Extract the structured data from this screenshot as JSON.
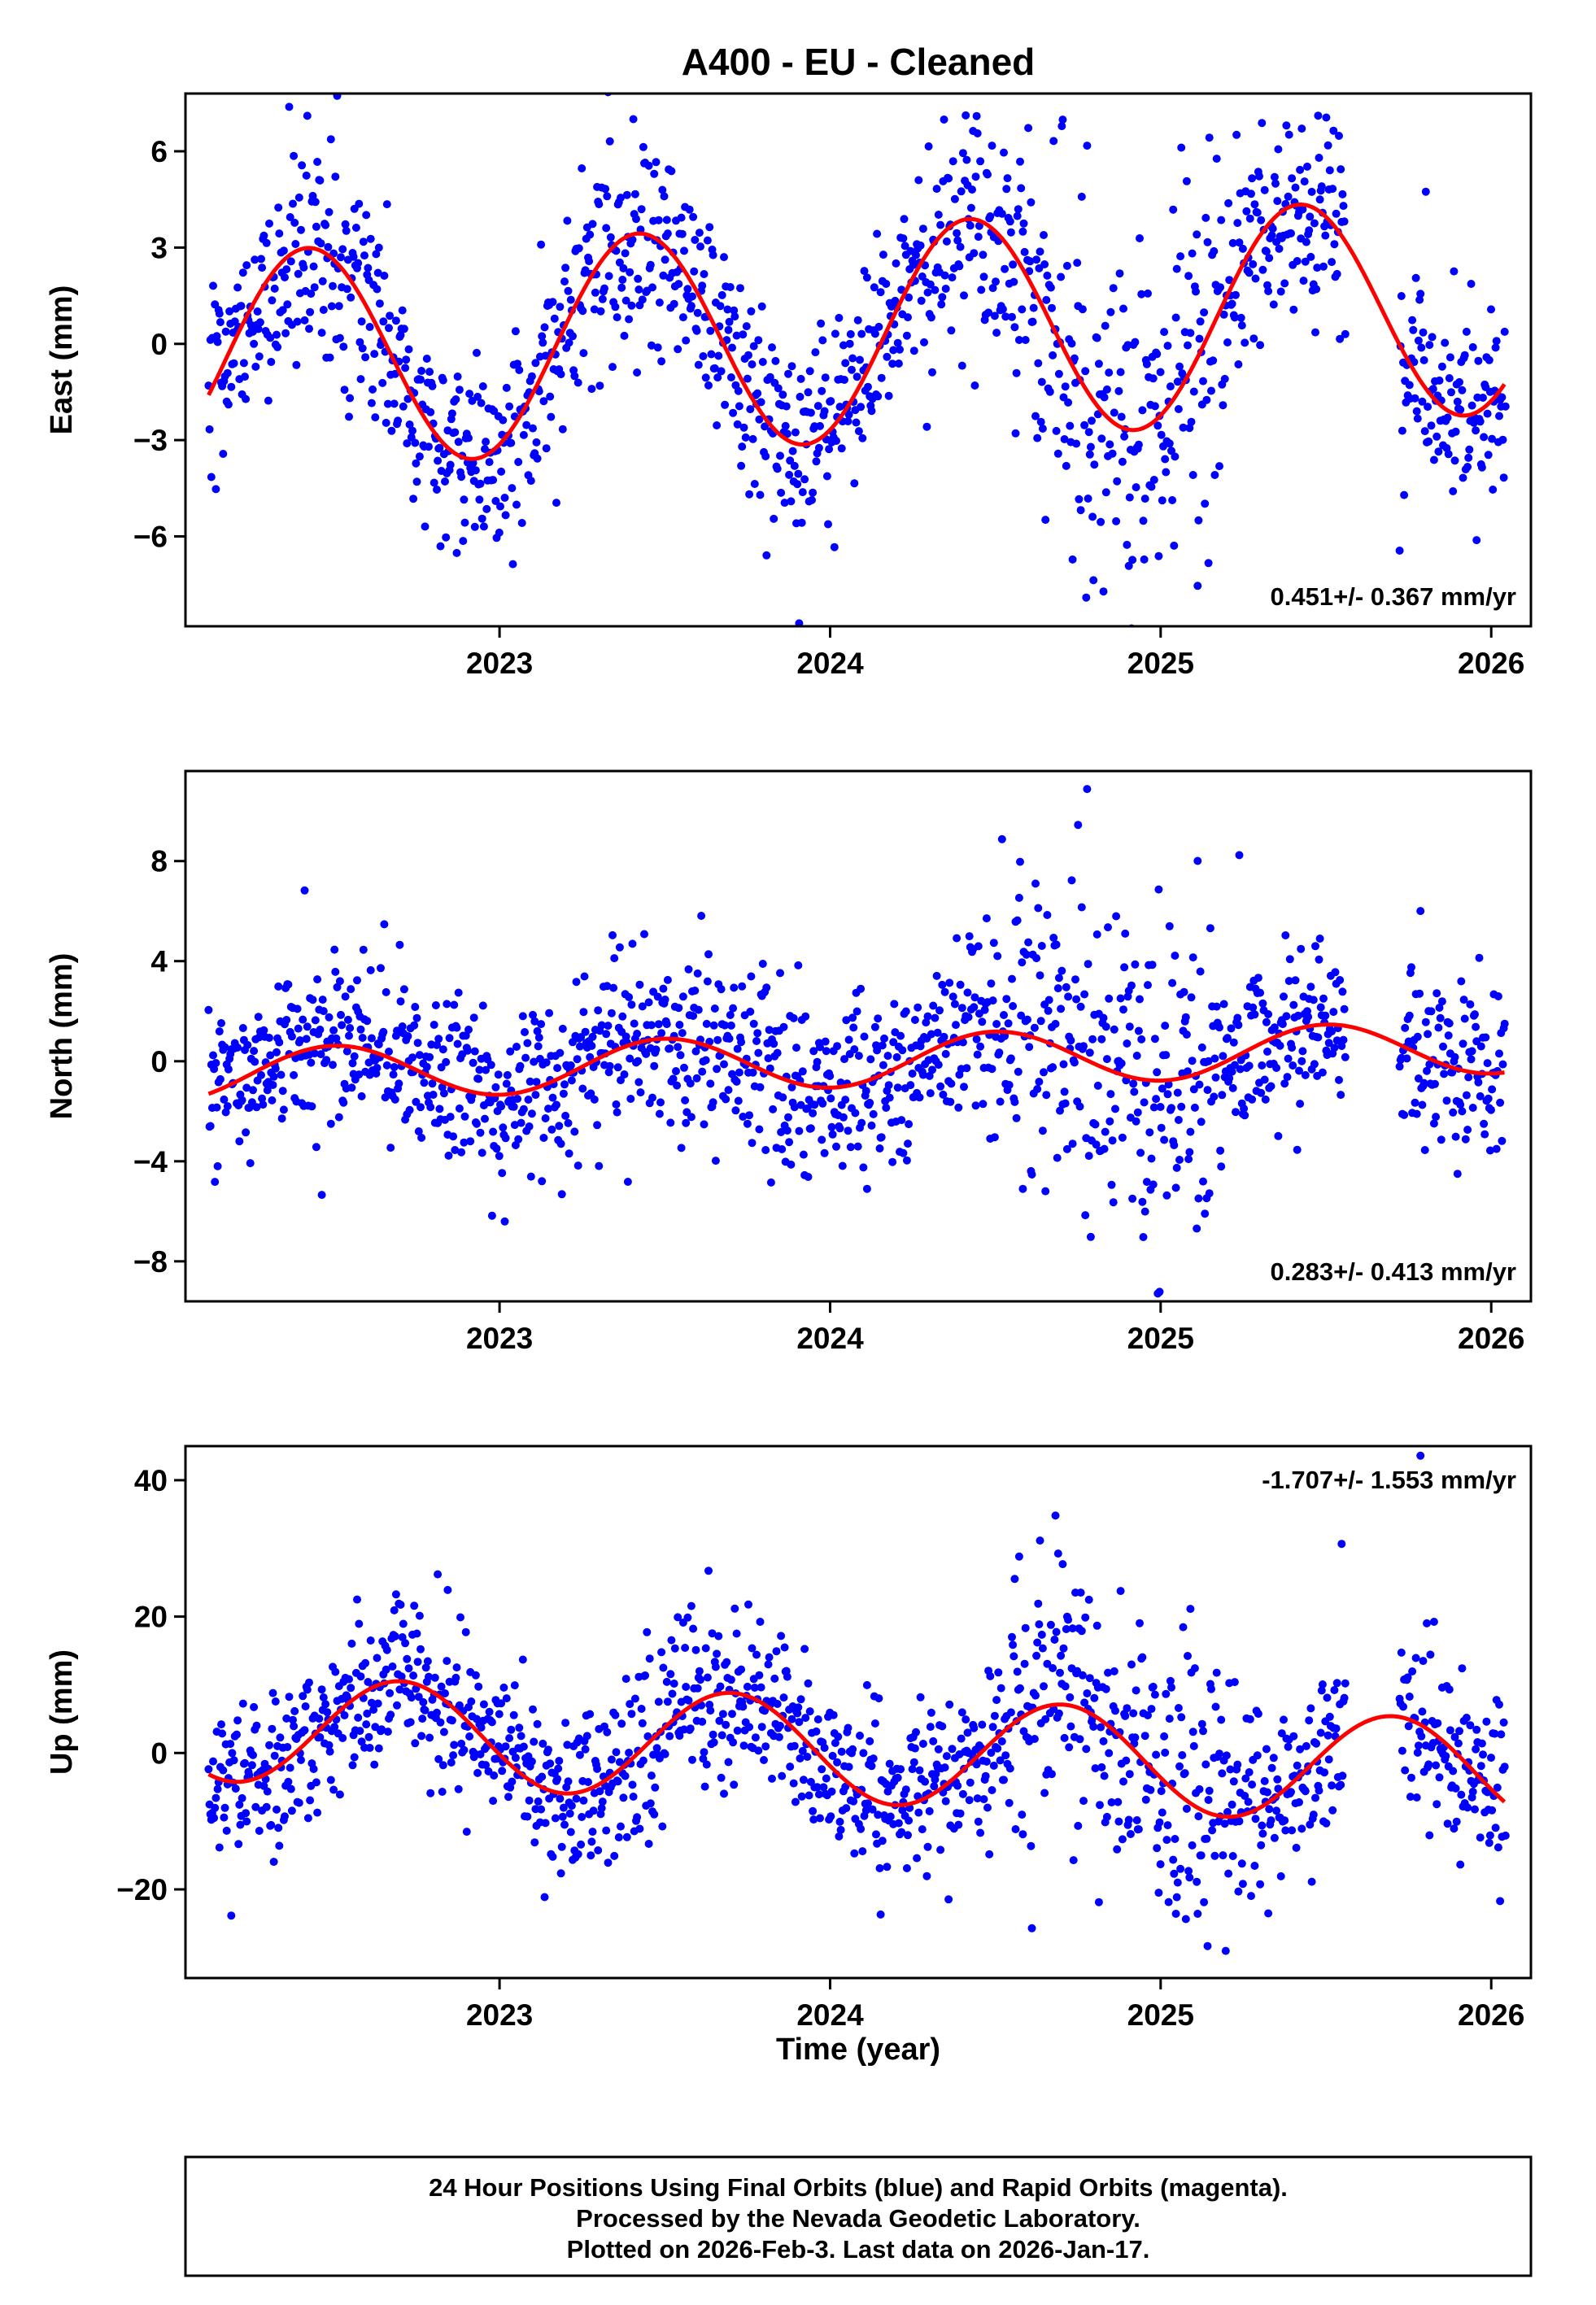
{
  "chart_data": {
    "type": "scatter",
    "title": "A400  - EU - Cleaned",
    "x_axis": {
      "label": "Time (year)",
      "min": 2022.05,
      "max": 2026.12,
      "ticks": [
        2023,
        2024,
        2025,
        2026
      ]
    },
    "colors": {
      "points": "#0000ff",
      "model": "#ff0000",
      "frame": "#000000",
      "background": "#ffffff"
    },
    "scatter_common": {
      "start": 2022.12,
      "end": 2026.045,
      "samples_per_year": 365,
      "gaps": [
        [
          2025.56,
          2025.72
        ]
      ]
    },
    "panels": [
      {
        "id": "east",
        "ylabel": "East (mm)",
        "ylim": [
          -8.8,
          7.8
        ],
        "yticks": [
          -6,
          -3,
          0,
          3,
          6
        ],
        "rate_label": "0.451+/- 0.367 mm/yr",
        "rate_label_position": "bottom-right",
        "model": {
          "offset_mm": 0.3,
          "ref_epoch": 2024.0,
          "trend_mm_yr": 0.451,
          "annual_amplitude_mm": 3.4,
          "annual_peak_epoch": 2024.42
        },
        "noise": {
          "sigma_mm": 1.6,
          "seed": 101,
          "outlier_rate": 0.03,
          "outlier_scale": 2.3,
          "noisy_windows": [
            {
              "from": 2024.55,
              "to": 2025.2,
              "scale": 1.8
            }
          ]
        }
      },
      {
        "id": "north",
        "ylabel": "North (mm)",
        "ylim": [
          -9.6,
          11.6
        ],
        "yticks": [
          -8,
          -4,
          0,
          4,
          8
        ],
        "rate_label": "0.283+/- 0.413 mm/yr",
        "rate_label_position": "bottom-right",
        "model": {
          "offset_mm": -0.15,
          "ref_epoch": 2023.5,
          "trend_mm_yr": 0.283,
          "annual_amplitude_mm": 1.05,
          "annual_peak_epoch": 2024.5
        },
        "noise": {
          "sigma_mm": 1.7,
          "seed": 202,
          "outlier_rate": 0.03,
          "outlier_scale": 2.3,
          "noisy_windows": [
            {
              "from": 2024.55,
              "to": 2025.2,
              "scale": 1.9
            }
          ]
        }
      },
      {
        "id": "up",
        "ylabel": "Up (mm)",
        "ylim": [
          -33,
          45
        ],
        "yticks": [
          -20,
          0,
          20,
          40
        ],
        "rate_label": "-1.707+/- 1.553 mm/yr",
        "rate_label_position": "top-right",
        "model": {
          "offset_mm": 0.5,
          "ref_epoch": 2024.0,
          "trend_mm_yr": -1.707,
          "annual_amplitude_mm": 7.8,
          "annual_peak_epoch": 2023.7
        },
        "noise": {
          "sigma_mm": 6.0,
          "seed": 303,
          "outlier_rate": 0.03,
          "outlier_scale": 2.2,
          "noisy_windows": [
            {
              "from": 2024.55,
              "to": 2025.3,
              "scale": 1.8
            }
          ]
        }
      }
    ]
  },
  "footer": {
    "lines": [
      "24 Hour Positions Using Final Orbits (blue) and Rapid Orbits (magenta).",
      "Processed by the Nevada Geodetic Laboratory.",
      "Plotted on 2026-Feb-3. Last data on 2026-Jan-17."
    ]
  }
}
